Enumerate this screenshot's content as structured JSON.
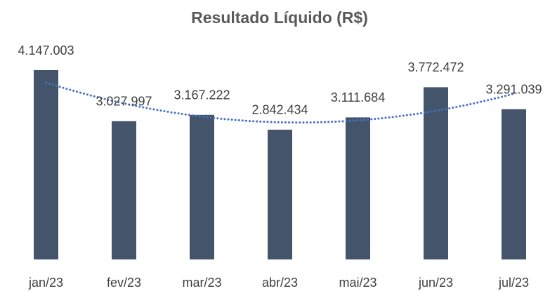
{
  "chart_data": {
    "type": "bar",
    "title": "Resultado Líquido (R$)",
    "categories": [
      "jan/23",
      "fev/23",
      "mar/23",
      "abr/23",
      "mai/23",
      "jun/23",
      "jul/23"
    ],
    "values": [
      4147003,
      3027997,
      3167222,
      2842434,
      3111684,
      3772472,
      3291039
    ],
    "value_labels": [
      "4.147.003",
      "3.027.997",
      "3.167.222",
      "2.842.434",
      "3.111.684",
      "3.772.472",
      "3.291.039"
    ],
    "color": "#44546a",
    "trendline": {
      "type": "polynomial",
      "order": 2,
      "color": "#4472c4"
    }
  }
}
